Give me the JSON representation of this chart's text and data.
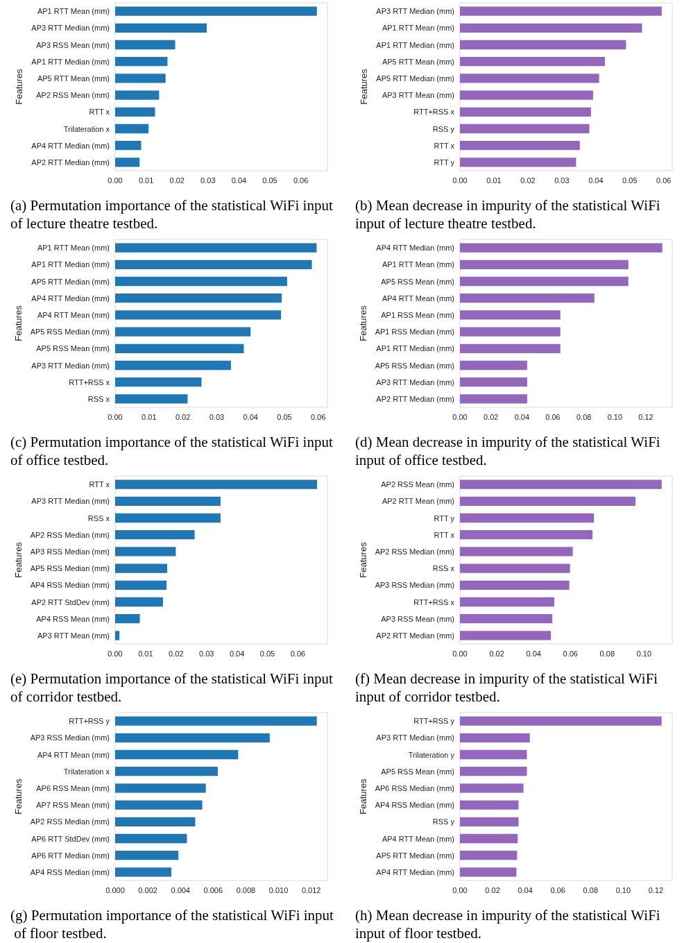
{
  "chart_data": [
    {
      "type": "bar",
      "orientation": "horizontal",
      "title": "(a) Permutation importance of the statistical WiFi input of lecture theatre testbed.",
      "ylabel": "Features",
      "color": "#1f77b4",
      "categories": [
        "AP1 RTT Mean (mm)",
        "AP3 RTT Median (mm)",
        "AP3 RSS Mean (mm)",
        "AP1 RTT Median (mm)",
        "AP5 RTT Mean (mm)",
        "AP2 RSS Mean (mm)",
        "RTT x",
        "Trilateration x",
        "AP4 RTT Median (mm)",
        "AP2 RTT Median (mm)"
      ],
      "values": [
        0.0652,
        0.0296,
        0.0194,
        0.0169,
        0.0163,
        0.0142,
        0.0129,
        0.0108,
        0.0084,
        0.0079
      ],
      "xlim": [
        0,
        0.0686
      ],
      "xticks": [
        {
          "value": 0,
          "label": "0.00"
        },
        0.01,
        0.02,
        0.03,
        0.04,
        0.05,
        0.06
      ]
    },
    {
      "type": "bar",
      "orientation": "horizontal",
      "title": "(b) Mean decrease in impurity of the statistical WiFi input of lecture theatre testbed.",
      "ylabel": "Features",
      "color": "#9467bd",
      "categories": [
        "AP3 RTT Median (mm)",
        "AP1 RTT Mean (mm)",
        "AP1 RTT Median (mm)",
        "AP5 RTT Mean (mm)",
        "AP5 RTT Median (mm)",
        "AP3 RTT Mean (mm)",
        "RTT+RSS x",
        "RSS y",
        "RTT x",
        "RTT y"
      ],
      "values": [
        0.0594,
        0.0536,
        0.0489,
        0.0427,
        0.041,
        0.0392,
        0.0386,
        0.0381,
        0.0353,
        0.0342
      ],
      "xlim": [
        0,
        0.0625
      ],
      "xticks": [
        {
          "value": 0,
          "label": "0.00"
        },
        0.01,
        0.02,
        0.03,
        0.04,
        0.05,
        0.06
      ]
    },
    {
      "type": "bar",
      "orientation": "horizontal",
      "title": "(c) Permutation importance of the statistical WiFi input of office testbed.",
      "ylabel": "Features",
      "color": "#1f77b4",
      "categories": [
        "AP1 RTT Mean (mm)",
        "AP1 RTT Median (mm)",
        "AP5 RTT Median (mm)",
        "AP4 RTT Median (mm)",
        "AP4 RTT Mean (mm)",
        "AP5 RSS Median (mm)",
        "AP5 RSS Mean (mm)",
        "AP3 RTT Median (mm)",
        "RTT+RSS x",
        "RSS x"
      ],
      "values": [
        0.0595,
        0.0581,
        0.0508,
        0.0492,
        0.049,
        0.04,
        0.038,
        0.0342,
        0.0255,
        0.0214
      ],
      "xlim": [
        0,
        0.0627
      ],
      "xticks": [
        {
          "value": 0,
          "label": "0.00"
        },
        0.01,
        0.02,
        0.03,
        0.04,
        0.05,
        0.06
      ]
    },
    {
      "type": "bar",
      "orientation": "horizontal",
      "title": "(d) Mean decrease in impurity of the statistical WiFi input of office testbed.",
      "ylabel": "Features",
      "color": "#9467bd",
      "categories": [
        "AP4 RTT Median (mm)",
        "AP1 RTT Mean (mm)",
        "AP5 RSS Mean (mm)",
        "AP4 RTT Mean (mm)",
        "AP1 RSS Mean (mm)",
        "AP1 RSS Median (mm)",
        "AP1 RTT Median (mm)",
        "AP5 RSS Median (mm)",
        "AP3 RTT Median (mm)",
        "AP2 RTT Median (mm)"
      ],
      "values": [
        0.1306,
        0.1087,
        0.1087,
        0.0868,
        0.0648,
        0.0648,
        0.0648,
        0.0434,
        0.0434,
        0.0434
      ],
      "xlim": [
        0,
        0.137
      ],
      "xticks": [
        {
          "value": 0,
          "label": "0.00"
        },
        0.02,
        0.04,
        0.06,
        0.08,
        {
          "value": 0.1,
          "label": "0.10"
        },
        0.12
      ]
    },
    {
      "type": "bar",
      "orientation": "horizontal",
      "title": "(e) Permutation importance of the statistical WiFi input of corridor testbed.",
      "ylabel": "Features",
      "color": "#1f77b4",
      "categories": [
        "RTT x",
        "AP3 RTT Median (mm)",
        "RSS x",
        "AP2 RSS Median (mm)",
        "AP3 RSS Median (mm)",
        "AP5 RSS Median (mm)",
        "AP4 RSS Median (mm)",
        "AP2 RTT StdDev (mm)",
        "AP4 RSS Mean (mm)",
        "AP3 RTT Mean (mm)"
      ],
      "values": [
        0.0663,
        0.0346,
        0.0346,
        0.0261,
        0.0199,
        0.0171,
        0.0169,
        0.0157,
        0.0081,
        0.0014
      ],
      "xlim": [
        0,
        0.0697
      ],
      "xticks": [
        {
          "value": 0,
          "label": "0.00"
        },
        0.01,
        0.02,
        0.03,
        0.04,
        0.05,
        0.06
      ]
    },
    {
      "type": "bar",
      "orientation": "horizontal",
      "title": "(f) Mean decrease in impurity of the statistical WiFi input of corridor testbed.",
      "ylabel": "Features",
      "color": "#9467bd",
      "categories": [
        "AP2 RSS Mean (mm)",
        "AP2 RTT Mean (mm)",
        "RTT y",
        "RTT x",
        "AP2 RSS Median (mm)",
        "RSS x",
        "AP3 RSS Median (mm)",
        "RTT+RSS x",
        "AP3 RSS Mean (mm)",
        "AP2 RTT Median (mm)"
      ],
      "values": [
        0.1096,
        0.0954,
        0.0728,
        0.072,
        0.0613,
        0.0598,
        0.0594,
        0.0513,
        0.0502,
        0.0494
      ],
      "xlim": [
        0,
        0.1153
      ],
      "xticks": [
        {
          "value": 0,
          "label": "0.00"
        },
        0.02,
        0.04,
        0.06,
        0.08,
        {
          "value": 0.1,
          "label": "0.10"
        }
      ]
    },
    {
      "type": "bar",
      "orientation": "horizontal",
      "title": "(g) Permutation importance of the statistical WiFi input of floor testbed.",
      "ylabel": "Features",
      "color": "#1f77b4",
      "categories": [
        "RTT+RSS y",
        "AP3 RSS Median (mm)",
        "AP4 RTT Mean (mm)",
        "Trilateration x",
        "AP6 RSS Mean (mm)",
        "AP7 RSS Mean (mm)",
        "AP2 RSS Median (mm)",
        "AP6 RTT StdDev (mm)",
        "AP6 RTT Median (mm)",
        "AP4 RSS Median (mm)"
      ],
      "values": [
        0.01234,
        0.00946,
        0.00753,
        0.00628,
        0.00555,
        0.00533,
        0.0049,
        0.00439,
        0.00387,
        0.00344
      ],
      "xlim": [
        0,
        0.01299
      ],
      "xticks": [
        {
          "value": 0,
          "label": "0.000"
        },
        0.002,
        0.004,
        0.006,
        0.008,
        {
          "value": 0.01,
          "label": "0.010"
        },
        0.012
      ]
    },
    {
      "type": "bar",
      "orientation": "horizontal",
      "title": "(h) Mean decrease in impurity of the statistical WiFi input of floor testbed.",
      "ylabel": "Features",
      "color": "#9467bd",
      "categories": [
        "RTT+RSS y",
        "AP3 RTT Median (mm)",
        "Trilateration y",
        "AP5 RSS Mean (mm)",
        "AP6 RSS Median (mm)",
        "AP4 RSS Median (mm)",
        "RSS y",
        "AP4 RTT Mean (mm)",
        "AP5 RTT Median (mm)",
        "AP4 RTT Median (mm)"
      ],
      "values": [
        0.1235,
        0.0428,
        0.041,
        0.041,
        0.0389,
        0.0359,
        0.0359,
        0.0354,
        0.035,
        0.0346
      ],
      "xlim": [
        0,
        0.13
      ],
      "xticks": [
        {
          "value": 0,
          "label": "0.00"
        },
        0.02,
        0.04,
        0.06,
        0.08,
        {
          "value": 0.1,
          "label": "0.10"
        },
        0.12
      ]
    }
  ]
}
